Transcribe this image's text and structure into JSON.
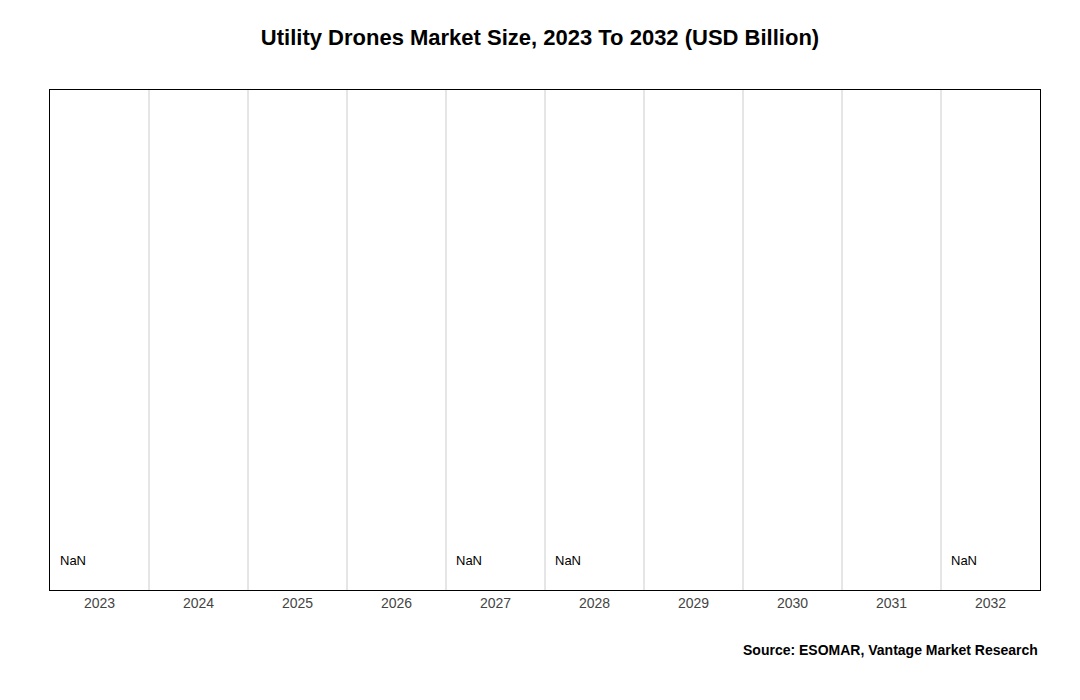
{
  "chart_data": {
    "type": "bar",
    "title": "Utility Drones Market Size, 2023 To 2032 (USD Billion)",
    "categories": [
      2023,
      2024,
      2025,
      2026,
      2027,
      2028,
      2029,
      2030,
      2031,
      2032
    ],
    "values": [
      null,
      null,
      null,
      null,
      null,
      null,
      null,
      null,
      null,
      null
    ],
    "ylim": [
      0,
      1
    ],
    "tick_labels": "x",
    "grid": true,
    "annotations": [
      {
        "x": 2023,
        "text": "NaN"
      },
      {
        "x": 2027,
        "text": "NaN"
      },
      {
        "x": 2028,
        "text": "NaN"
      },
      {
        "x": 2032,
        "text": "NaN"
      },
      {
        "text": "Source: ESOMAR, Vantage Market Research"
      }
    ]
  }
}
